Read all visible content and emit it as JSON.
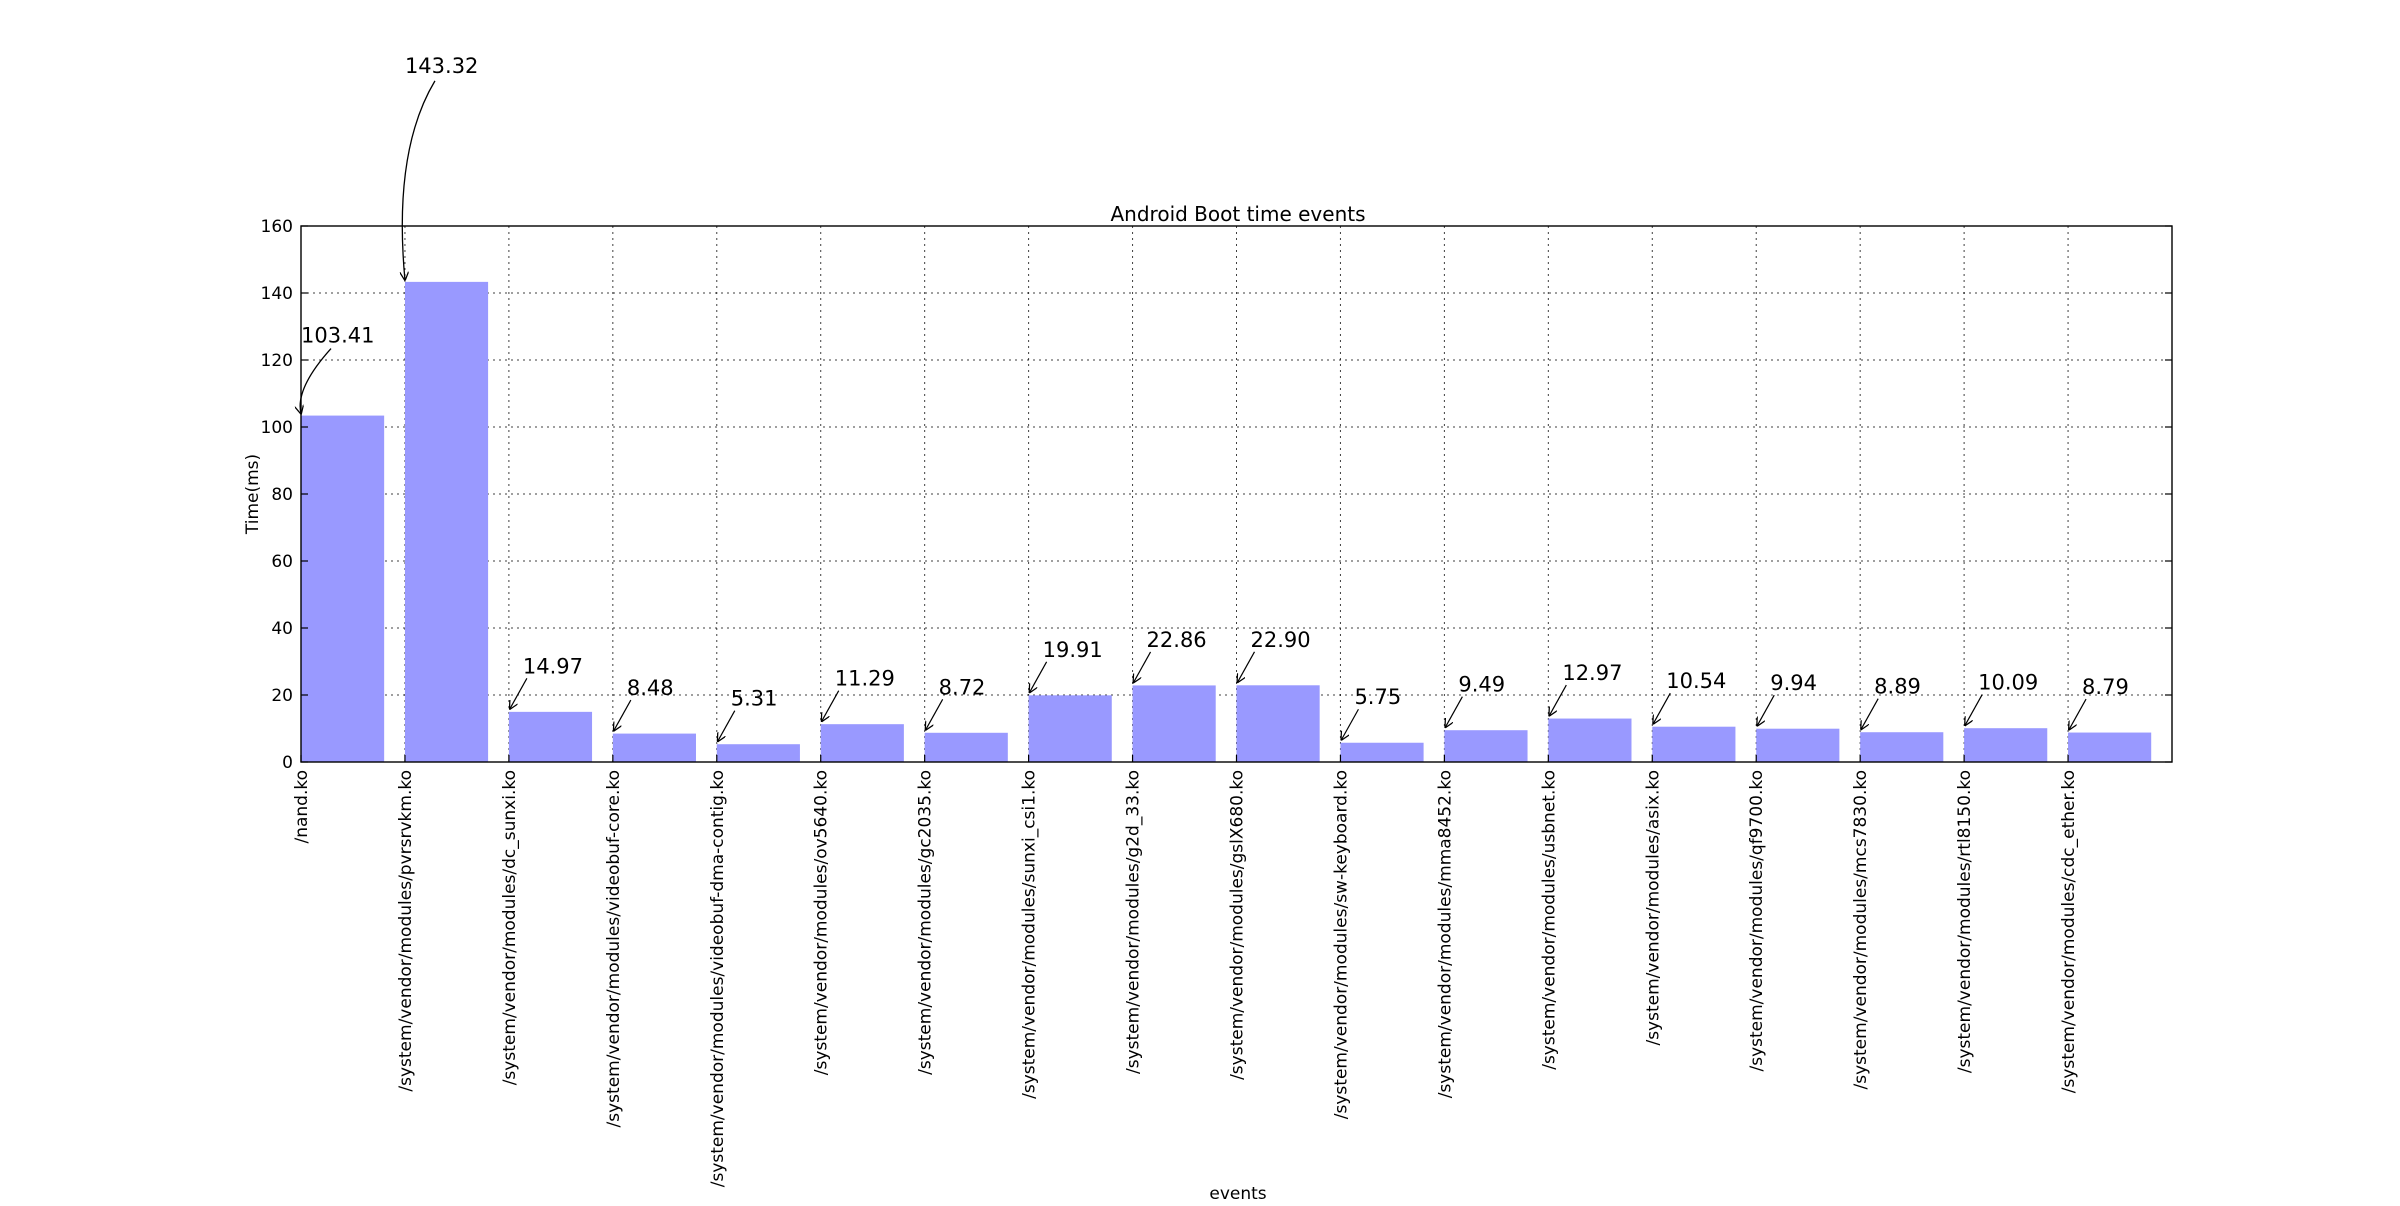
{
  "chart_data": {
    "type": "bar",
    "title": "Android Boot time events",
    "xlabel": "events",
    "ylabel": "Time(ms)",
    "ylim": [
      0,
      160
    ],
    "yticks": [
      0,
      20,
      40,
      60,
      80,
      100,
      120,
      140,
      160
    ],
    "grid": true,
    "bar_color": "#9999ff",
    "categories": [
      "/nand.ko",
      "/system/vendor/modules/pvrsrvkm.ko",
      "/system/vendor/modules/dc_sunxi.ko",
      "/system/vendor/modules/videobuf-core.ko",
      "/system/vendor/modules/videobuf-dma-contig.ko",
      "/system/vendor/modules/ov5640.ko",
      "/system/vendor/modules/gc2035.ko",
      "/system/vendor/modules/sunxi_csi1.ko",
      "/system/vendor/modules/g2d_33.ko",
      "/system/vendor/modules/gslX680.ko",
      "/system/vendor/modules/sw-keyboard.ko",
      "/system/vendor/modules/mma8452.ko",
      "/system/vendor/modules/usbnet.ko",
      "/system/vendor/modules/asix.ko",
      "/system/vendor/modules/qf9700.ko",
      "/system/vendor/modules/mcs7830.ko",
      "/system/vendor/modules/rtl8150.ko",
      "/system/vendor/modules/cdc_ether.ko"
    ],
    "values": [
      103.41,
      143.32,
      14.97,
      8.48,
      5.31,
      11.29,
      8.72,
      19.91,
      22.86,
      22.9,
      5.75,
      9.49,
      12.97,
      10.54,
      9.94,
      8.89,
      10.09,
      8.79
    ],
    "annotations": [
      "103.41",
      "143.32",
      "14.97",
      "8.48",
      "5.31",
      "11.29",
      "8.72",
      "19.91",
      "22.86",
      "22.90",
      "5.75",
      "9.49",
      "12.97",
      "10.54",
      "9.94",
      "8.89",
      "10.09",
      "8.79"
    ]
  }
}
